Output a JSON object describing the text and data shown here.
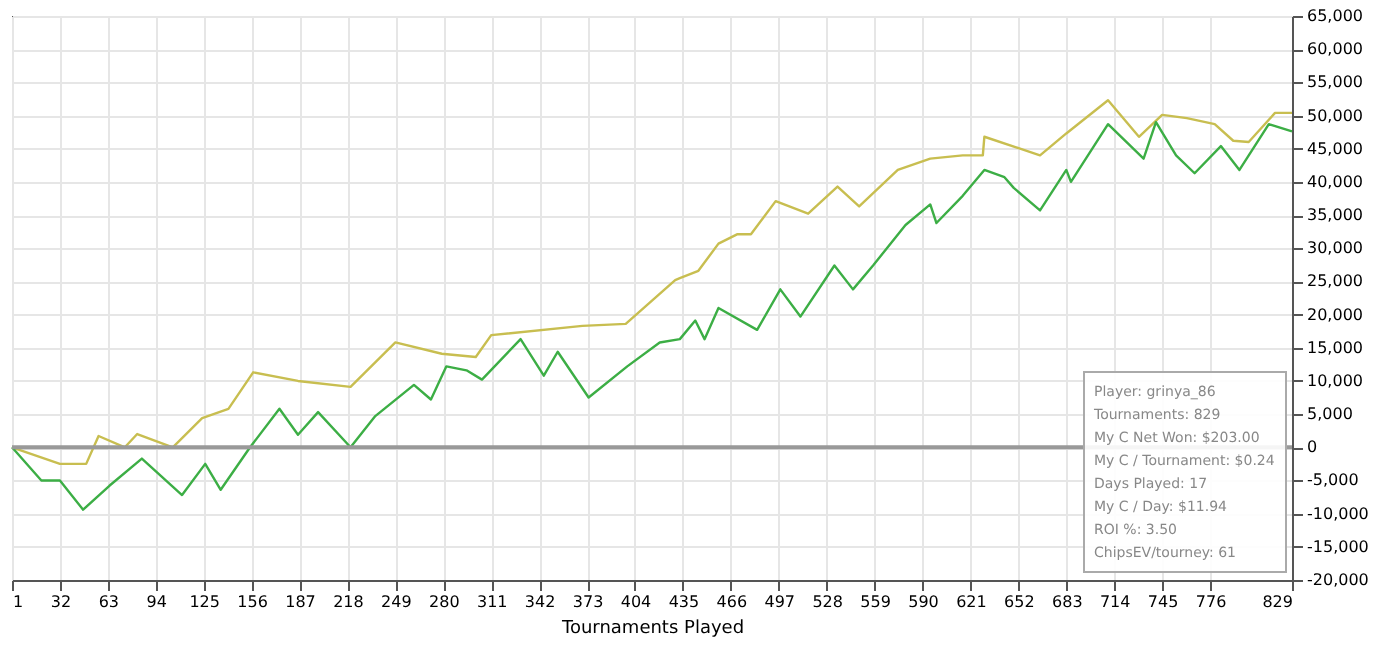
{
  "chart_data": {
    "type": "line",
    "xlabel": "Tournaments Played",
    "xlim": [
      1,
      829
    ],
    "xticks": [
      1,
      32,
      63,
      94,
      125,
      156,
      187,
      218,
      249,
      280,
      311,
      342,
      373,
      404,
      435,
      466,
      497,
      528,
      559,
      590,
      621,
      652,
      683,
      714,
      745,
      776,
      829
    ],
    "ylim": [
      -20000,
      65000
    ],
    "yticks": [
      {
        "value": -20000,
        "label": "-20,000"
      },
      {
        "value": -15000,
        "label": "-15,000"
      },
      {
        "value": -10000,
        "label": "-10,000"
      },
      {
        "value": -5000,
        "label": "-5,000"
      },
      0,
      {
        "value": 5000,
        "label": "5,000"
      },
      {
        "value": 10000,
        "label": "10,000"
      },
      {
        "value": 15000,
        "label": "15,000"
      },
      {
        "value": 20000,
        "label": "20,000"
      },
      {
        "value": 25000,
        "label": "25,000"
      },
      {
        "value": 30000,
        "label": "30,000"
      },
      {
        "value": 35000,
        "label": "35,000"
      },
      {
        "value": 40000,
        "label": "40,000"
      },
      {
        "value": 45000,
        "label": "45,000"
      },
      {
        "value": 50000,
        "label": "50,000"
      },
      {
        "value": 55000,
        "label": "55,000"
      },
      {
        "value": 60000,
        "label": "60,000"
      },
      {
        "value": 65000,
        "label": "65,000"
      }
    ],
    "grid": true,
    "marker": "none",
    "line_style": "solid",
    "series": [
      {
        "color": "#c8be50",
        "x": [
          1,
          32,
          49,
          57,
          74,
          82,
          105,
          124,
          141,
          157,
          186,
          220,
          249,
          279,
          301,
          311,
          370,
          398,
          430,
          433,
          445,
          458,
          470,
          479,
          495,
          516,
          535,
          549,
          574,
          595,
          616,
          629,
          630,
          666,
          683,
          710,
          730,
          745,
          761,
          779,
          791,
          801,
          818,
          829
        ],
        "values": [
          0,
          -2500,
          -2500,
          1700,
          0,
          2000,
          0,
          4400,
          5800,
          11300,
          10000,
          9100,
          15800,
          14100,
          13600,
          16900,
          18300,
          18600,
          25200,
          25500,
          26600,
          30700,
          32100,
          32100,
          37100,
          35200,
          39300,
          36300,
          41800,
          43500,
          44000,
          44000,
          46800,
          44000,
          47300,
          52300,
          46800,
          50100,
          49600,
          48700,
          46200,
          46000,
          50400,
          50400
        ]
      },
      {
        "color": "#3cae45",
        "x": [
          1,
          20,
          32,
          47,
          64,
          85,
          111,
          126,
          136,
          155,
          174,
          186,
          199,
          220,
          236,
          261,
          272,
          282,
          295,
          305,
          330,
          345,
          354,
          374,
          399,
          420,
          433,
          443,
          449,
          458,
          483,
          498,
          511,
          533,
          545,
          558,
          579,
          595,
          599,
          616,
          630,
          643,
          649,
          666,
          683,
          686,
          710,
          733,
          741,
          754,
          766,
          783,
          795,
          814,
          829
        ],
        "values": [
          0,
          -5000,
          -5000,
          -9400,
          -5800,
          -1700,
          -7200,
          -2500,
          -6400,
          0,
          5800,
          1900,
          5300,
          0,
          4700,
          9400,
          7200,
          12200,
          11600,
          10200,
          16300,
          10800,
          14400,
          7500,
          12200,
          15800,
          16300,
          19100,
          16300,
          21000,
          17700,
          23800,
          19700,
          27400,
          23800,
          27400,
          33500,
          36600,
          33800,
          37900,
          41800,
          40700,
          39100,
          35700,
          41800,
          40000,
          48700,
          43500,
          49000,
          44000,
          41300,
          45400,
          41800,
          48700,
          47600
        ]
      }
    ],
    "ref_lines": [
      {
        "axis": "y",
        "value": 0,
        "color": "#999999"
      }
    ],
    "annotations": [
      "Player: grinya_86",
      "Tournaments: 829",
      "My C Net Won: $203.00",
      "My C / Tournament: $0.24",
      "Days Played: 17",
      "My C / Day: $11.94",
      "ROI %: 3.50",
      "ChipsEV/tourney: 61"
    ]
  }
}
